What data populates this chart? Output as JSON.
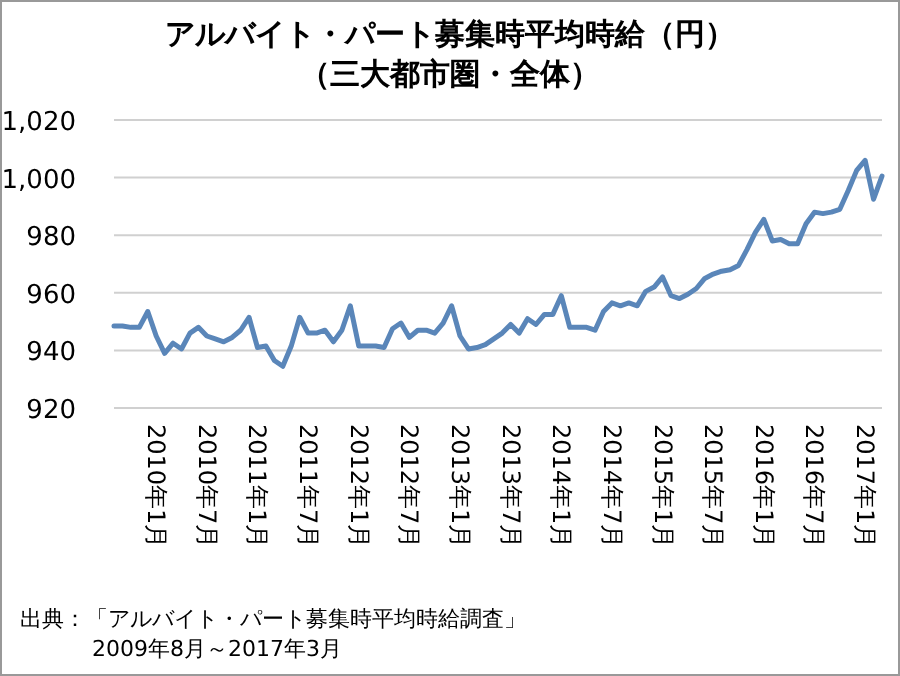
{
  "chart_data": {
    "type": "line",
    "title": "アルバイト・パート募集時平均時給（円）",
    "subtitle": "（三大都市圏・全体）",
    "categories": [
      null,
      null,
      null,
      null,
      null,
      "2010年1月",
      null,
      null,
      null,
      null,
      null,
      "2010年7月",
      null,
      null,
      null,
      null,
      null,
      "2011年1月",
      null,
      null,
      null,
      null,
      null,
      "2011年7月",
      null,
      null,
      null,
      null,
      null,
      "2012年1月",
      null,
      null,
      null,
      null,
      null,
      "2012年7月",
      null,
      null,
      null,
      null,
      null,
      "2013年1月",
      null,
      null,
      null,
      null,
      null,
      "2013年7月",
      null,
      null,
      null,
      null,
      null,
      "2014年1月",
      null,
      null,
      null,
      null,
      null,
      "2014年7月",
      null,
      null,
      null,
      null,
      null,
      "2015年1月",
      null,
      null,
      null,
      null,
      null,
      "2015年7月",
      null,
      null,
      null,
      null,
      null,
      "2016年1月",
      null,
      null,
      null,
      null,
      null,
      "2016年7月",
      null,
      null,
      null,
      null,
      null,
      "2017年1月",
      null,
      null
    ],
    "series": [
      {
        "color": "#5a86b9",
        "values": [
          948.5,
          948.5,
          948,
          948,
          953.5,
          945,
          939,
          942.5,
          940.5,
          946,
          948,
          945,
          944,
          943,
          944.5,
          947,
          951.5,
          941,
          941.5,
          936.5,
          934.5,
          941.5,
          951.5,
          946,
          946,
          947,
          943,
          947,
          955.5,
          941.5,
          941.5,
          941.5,
          941,
          947.5,
          949.5,
          944.5,
          947,
          947,
          946,
          949.5,
          955.5,
          945,
          940.5,
          941,
          942,
          944,
          946,
          949,
          946,
          951,
          949,
          952.5,
          952.5,
          959,
          948,
          948,
          948,
          947,
          953.5,
          956.5,
          955.5,
          956.5,
          955.5,
          960.5,
          962,
          965.5,
          959,
          958,
          959.5,
          961.5,
          965,
          966.5,
          967.5,
          968,
          969.5,
          975,
          981,
          985.5,
          978,
          978.5,
          977,
          977,
          984,
          988,
          987.5,
          988,
          989,
          995.5,
          1002.5,
          1006,
          992.5,
          1000.5
        ]
      }
    ],
    "ylim": [
      920,
      1020
    ],
    "yticks": [
      920,
      940,
      960,
      980,
      {
        "value": 1000,
        "label": "1,000"
      },
      {
        "value": 1020,
        "label": "1,020"
      }
    ],
    "grid": "y",
    "annotations": [
      "出典：「アルバイト・パート募集時平均時給調査」",
      "2009年8月～2017年3月"
    ]
  }
}
